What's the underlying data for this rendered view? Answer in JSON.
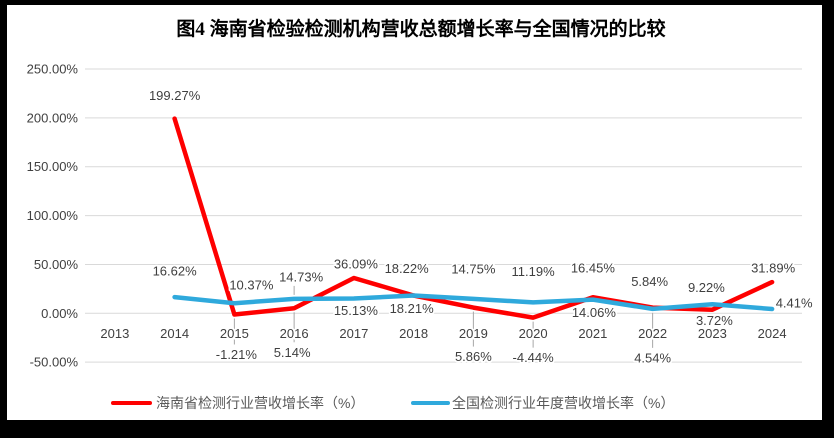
{
  "frame": {
    "border_color": "#000000",
    "canvas_color": "#ffffff"
  },
  "chart_data": {
    "type": "line",
    "title": "图4 海南省检验检测机构营收总额增长率与全国情况的比较",
    "categories": [
      "2013",
      "2014",
      "2015",
      "2016",
      "2017",
      "2018",
      "2019",
      "2020",
      "2021",
      "2022",
      "2023",
      "2024"
    ],
    "grid": true,
    "legend_position": "bottom",
    "grid_color": "#d9d9d9",
    "leader_color": "#a6a6a6",
    "y_axis": {
      "min": -50,
      "max": 250,
      "step": 50,
      "ticks": [
        {
          "value": 250,
          "label": "250.00%"
        },
        {
          "value": 200,
          "label": "200.00%"
        },
        {
          "value": 150,
          "label": "150.00%"
        },
        {
          "value": 100,
          "label": "100.00%"
        },
        {
          "value": 50,
          "label": "50.00%"
        },
        {
          "value": 0,
          "label": "0.00%"
        },
        {
          "value": -50,
          "label": "-50.00%"
        }
      ]
    },
    "series": [
      {
        "name": "海南省检测行业营收增长率（%）",
        "color": "#fe0000",
        "values": [
          null,
          199.27,
          -1.21,
          5.14,
          36.09,
          18.22,
          5.86,
          -4.44,
          16.45,
          5.84,
          3.72,
          31.89
        ],
        "label_dx": [
          0,
          0,
          2,
          -2,
          2,
          -7,
          0,
          0,
          0,
          -3,
          2,
          1
        ],
        "label_dy": [
          0,
          -23,
          40,
          44,
          -14,
          -27,
          49,
          40,
          -29,
          -26,
          11,
          -14
        ],
        "label_leader": [
          false,
          false,
          true,
          true,
          false,
          false,
          true,
          true,
          false,
          false,
          false,
          false
        ]
      },
      {
        "name": "全国检测行业年度营收增长率（%）",
        "color": "#2fa9dc",
        "values": [
          null,
          16.62,
          10.37,
          14.73,
          15.13,
          18.21,
          14.75,
          11.19,
          14.06,
          4.54,
          9.22,
          4.41
        ],
        "label_dx": [
          0,
          0,
          17,
          7,
          2,
          -2,
          0,
          0,
          1,
          0,
          -6,
          22
        ],
        "label_dy": [
          0,
          -26,
          -18,
          -22,
          12,
          13,
          -30,
          -31,
          13,
          49,
          -17,
          -6
        ],
        "label_leader": [
          false,
          false,
          false,
          true,
          false,
          false,
          false,
          false,
          false,
          true,
          false,
          false
        ]
      }
    ]
  }
}
